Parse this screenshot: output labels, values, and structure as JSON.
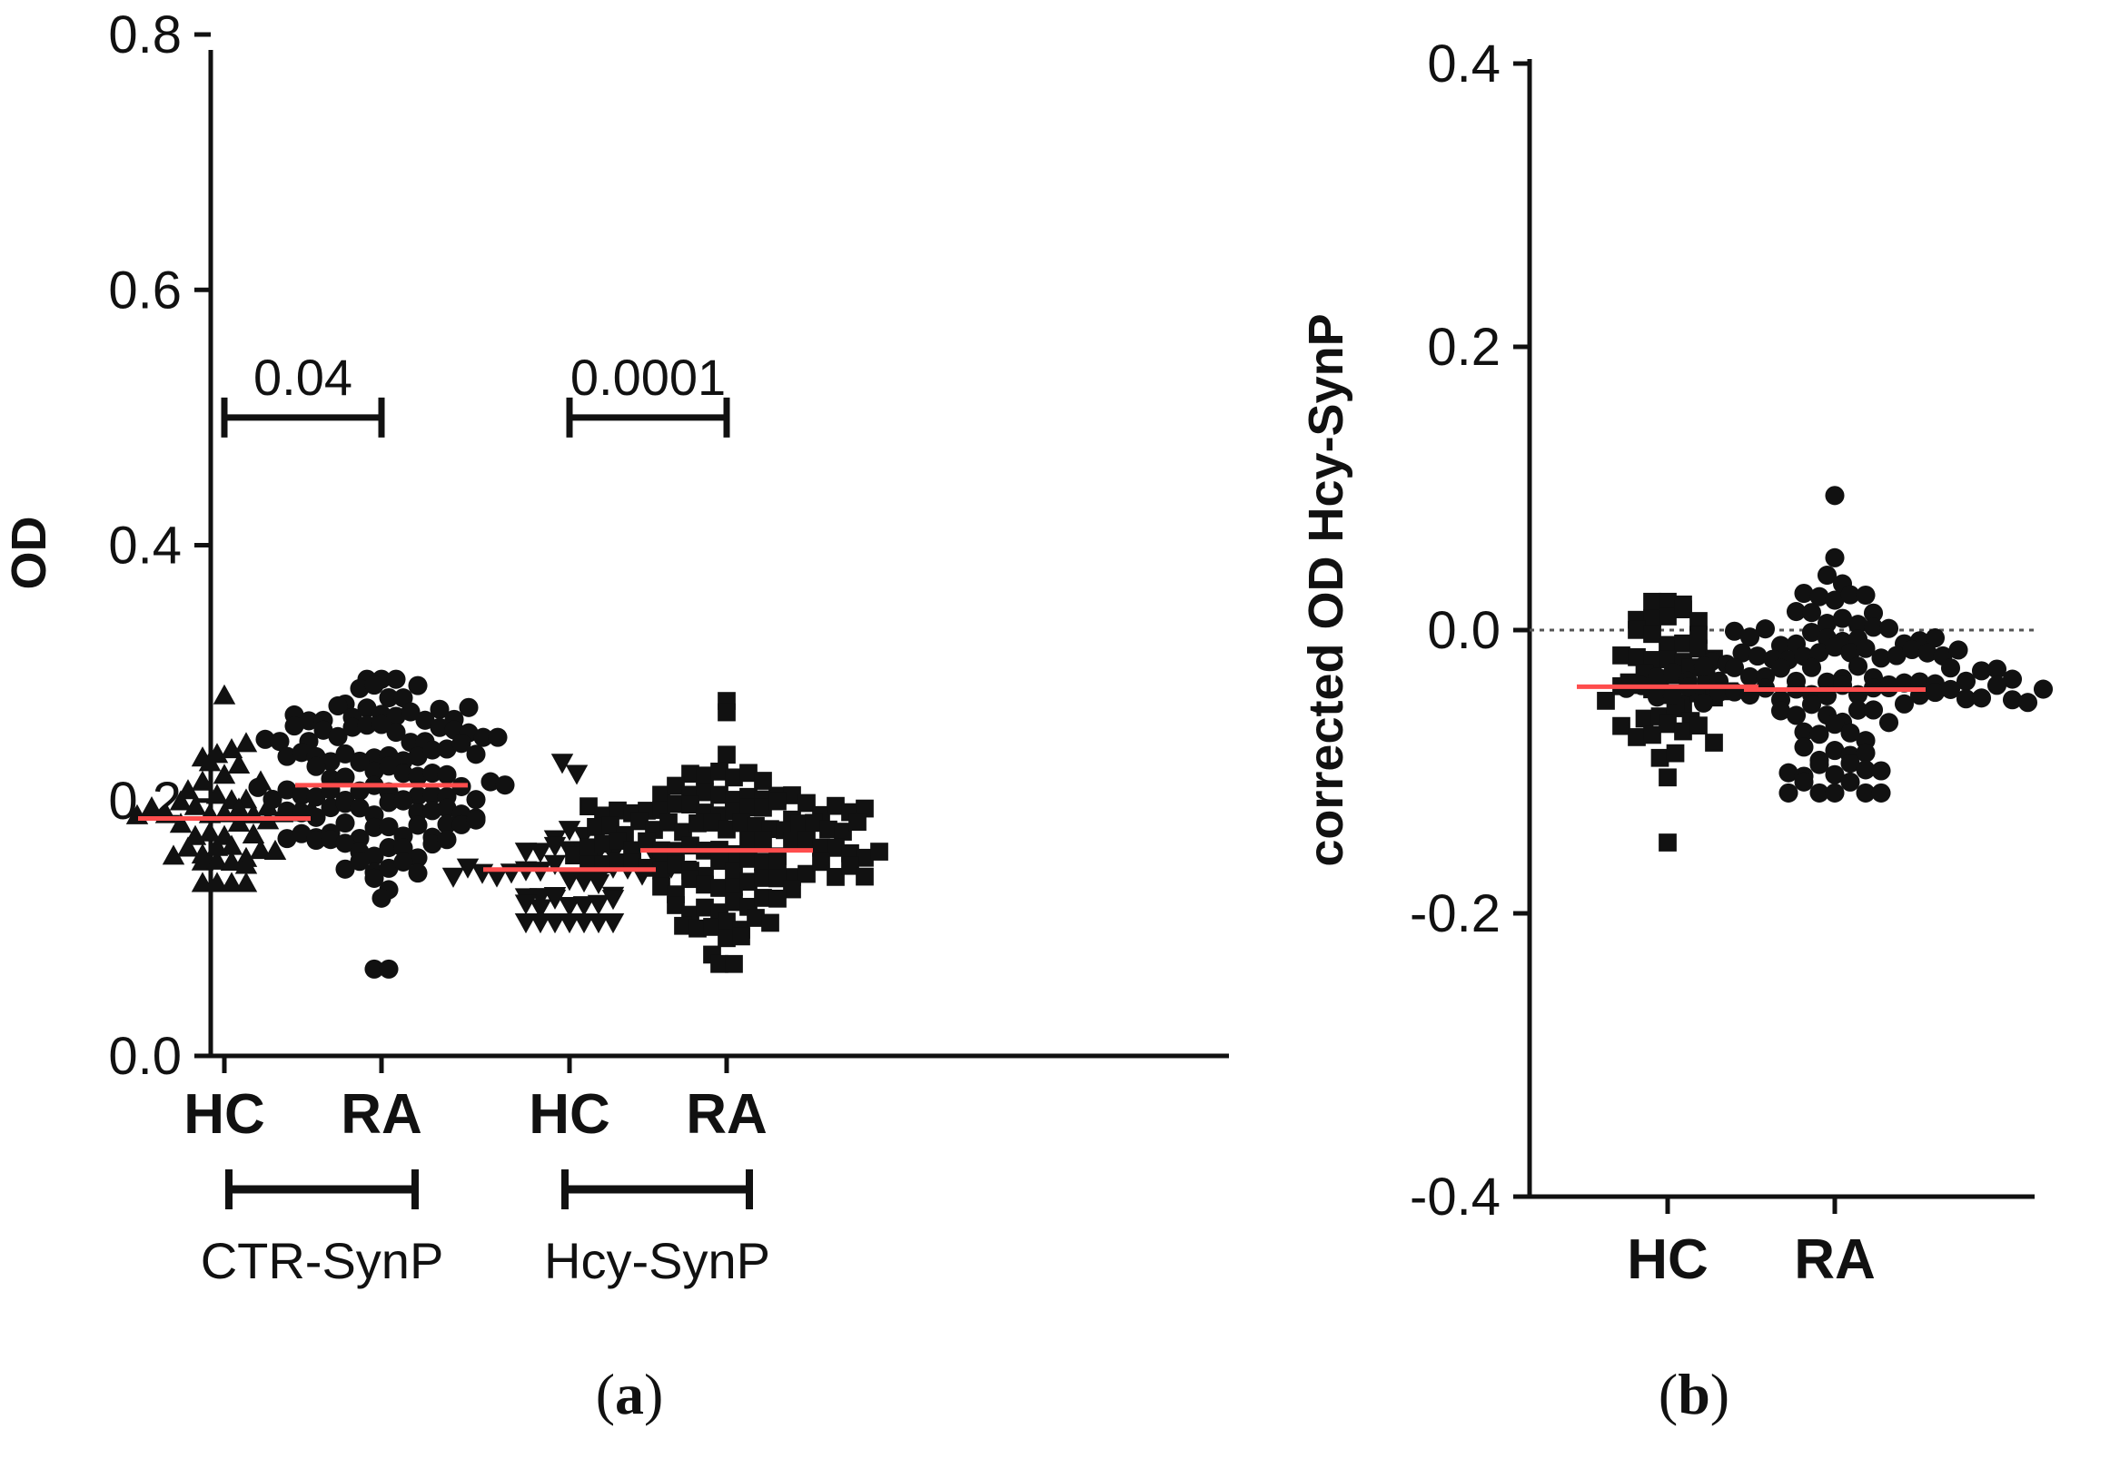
{
  "chart_data": [
    {
      "type": "scatter",
      "panel_label": {
        "open": "(",
        "letter": "a",
        "close": ")"
      },
      "ylabel": "OD",
      "ylim": [
        0.0,
        0.8
      ],
      "yticks": [
        "0.0",
        "0.2",
        "0.4",
        "0.6",
        "0.8"
      ],
      "groups": [
        {
          "name": "HC",
          "family": "CTR-SynP",
          "marker": "triangle-up",
          "n": 50,
          "mean": 0.186,
          "min": 0.135,
          "max": 0.282,
          "count_label": ""
        },
        {
          "name": "RA",
          "family": "CTR-SynP",
          "marker": "circle",
          "n": 130,
          "mean": 0.212,
          "min": 0.068,
          "max": 0.295,
          "count_label": ""
        },
        {
          "name": "HC",
          "family": "Hcy-SynP",
          "marker": "triangle-down",
          "n": 50,
          "mean": 0.146,
          "min": 0.105,
          "max": 0.23,
          "count_label": ""
        },
        {
          "name": "RA",
          "family": "Hcy-SynP",
          "marker": "square",
          "n": 130,
          "mean": 0.161,
          "min": 0.072,
          "max": 0.278,
          "count_label": ""
        }
      ],
      "brackets": [
        {
          "label": "CTR-SynP",
          "groups": [
            0,
            1
          ]
        },
        {
          "label": "Hcy-SynP",
          "groups": [
            2,
            3
          ]
        }
      ],
      "comparisons": [
        {
          "groups": [
            0,
            1
          ],
          "p_value": "0.04",
          "at_y": 0.5
        },
        {
          "groups": [
            2,
            3
          ],
          "p_value": "0.0001",
          "at_y": 0.5
        }
      ],
      "mean_line_color": "#ff4d4d"
    },
    {
      "type": "scatter",
      "panel_label": {
        "open": "(",
        "letter": "b",
        "close": ")"
      },
      "ylabel": "corrected OD Hcy-SynP",
      "ylim": [
        -0.4,
        0.4
      ],
      "yticks": [
        "0.4",
        "0.2",
        "0.0",
        "-0.2",
        "-0.4"
      ],
      "reference_line": 0.0,
      "groups": [
        {
          "name": "HC",
          "marker": "square",
          "n": 50,
          "mean": -0.04,
          "min": -0.15,
          "max": 0.02
        },
        {
          "name": "RA",
          "marker": "circle",
          "n": 130,
          "mean": -0.042,
          "min": -0.115,
          "max": 0.095
        }
      ],
      "mean_line_color": "#ff4d4d"
    }
  ]
}
